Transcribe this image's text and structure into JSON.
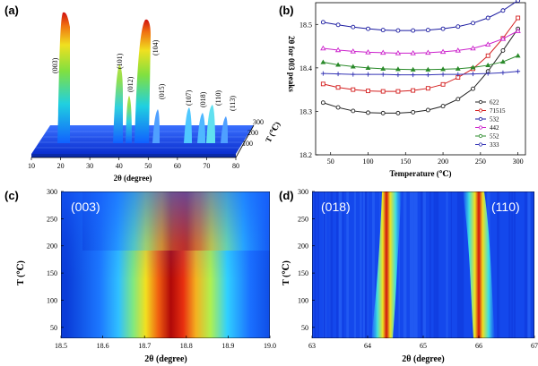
{
  "panels": {
    "a": {
      "label": "(a)",
      "xlabel": "2θ (degree)",
      "ylabel": "T (℃)",
      "xticks": [
        "10",
        "20",
        "30",
        "40",
        "50",
        "60",
        "70",
        "80"
      ],
      "tticks": [
        "100",
        "200",
        "300"
      ],
      "peaks": [
        "(003)",
        "(101)",
        "(012)",
        "(104)",
        "(015)",
        "(107)",
        "(018)",
        "(110)",
        "(113)"
      ]
    },
    "b": {
      "label": "(b)"
    },
    "c": {
      "label": "(c)",
      "annotation": "(003)",
      "xlabel": "2θ (degree)",
      "ylabel": "T (℃)",
      "xticks": [
        "18.5",
        "18.6",
        "18.7",
        "18.8",
        "18.9",
        "19.0"
      ],
      "yticks": [
        "50",
        "100",
        "150",
        "200",
        "250",
        "300"
      ]
    },
    "d": {
      "label": "(d)",
      "annotations": [
        "(018)",
        "(110)"
      ],
      "xlabel": "2θ (degree)",
      "ylabel": "T (℃)",
      "xticks": [
        "63",
        "64",
        "65",
        "66",
        "67"
      ],
      "yticks": [
        "50",
        "100",
        "150",
        "200",
        "250",
        "300"
      ]
    }
  },
  "chart_data": {
    "type": "line",
    "title": "",
    "xlabel": "Temperature (℃)",
    "ylabel": "2θ for 003 peaks",
    "xlim": [
      30,
      310
    ],
    "ylim": [
      18.2,
      18.55
    ],
    "xticks": [
      50,
      100,
      150,
      200,
      250,
      300
    ],
    "yticks": [
      18.2,
      18.3,
      18.4,
      18.5
    ],
    "x": [
      40,
      60,
      80,
      100,
      120,
      140,
      160,
      180,
      200,
      220,
      240,
      260,
      280,
      300
    ],
    "series": [
      {
        "name": "622",
        "color": "#222222",
        "values": [
          18.32,
          18.309,
          18.301,
          18.297,
          18.296,
          18.296,
          18.298,
          18.303,
          18.312,
          18.328,
          18.352,
          18.392,
          18.44,
          18.49
        ]
      },
      {
        "name": "71515",
        "color": "#d42020",
        "values": [
          18.363,
          18.355,
          18.35,
          18.347,
          18.346,
          18.346,
          18.348,
          18.353,
          18.362,
          18.378,
          18.398,
          18.428,
          18.468,
          18.515
        ]
      },
      {
        "name": "532",
        "color": "#1a1aa0",
        "values": [
          18.505,
          18.499,
          18.494,
          18.49,
          18.487,
          18.486,
          18.486,
          18.487,
          18.49,
          18.495,
          18.503,
          18.515,
          18.532,
          18.555
        ]
      },
      {
        "name": "442",
        "color": "#cc22cc",
        "values": [
          18.445,
          18.441,
          18.438,
          18.436,
          18.435,
          18.434,
          18.434,
          18.435,
          18.437,
          18.44,
          18.445,
          18.454,
          18.467,
          18.485
        ]
      },
      {
        "name": "552",
        "color": "#2a8a2a",
        "values": [
          18.413,
          18.407,
          18.403,
          18.4,
          18.398,
          18.397,
          18.396,
          18.396,
          18.397,
          18.398,
          18.401,
          18.406,
          18.414,
          18.428
        ]
      },
      {
        "name": "333",
        "color": "#3535b5",
        "values": [
          18.387,
          18.386,
          18.385,
          18.385,
          18.385,
          18.384,
          18.384,
          18.384,
          18.385,
          18.385,
          18.386,
          18.387,
          18.389,
          18.392
        ]
      }
    ],
    "legend": "bottom-right"
  }
}
